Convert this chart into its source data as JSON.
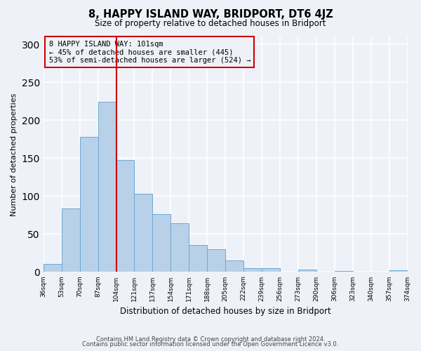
{
  "title": "8, HAPPY ISLAND WAY, BRIDPORT, DT6 4JZ",
  "subtitle": "Size of property relative to detached houses in Bridport",
  "xlabel": "Distribution of detached houses by size in Bridport",
  "ylabel": "Number of detached properties",
  "bin_labels": [
    "36sqm",
    "53sqm",
    "70sqm",
    "87sqm",
    "104sqm",
    "121sqm",
    "137sqm",
    "154sqm",
    "171sqm",
    "188sqm",
    "205sqm",
    "222sqm",
    "239sqm",
    "256sqm",
    "273sqm",
    "290sqm",
    "306sqm",
    "323sqm",
    "340sqm",
    "357sqm",
    "374sqm"
  ],
  "bar_heights": [
    11,
    84,
    178,
    224,
    148,
    103,
    76,
    64,
    36,
    30,
    15,
    5,
    5,
    0,
    3,
    0,
    1,
    0,
    0,
    2
  ],
  "bar_color": "#b8d0e8",
  "bar_edge_color": "#6aaad4",
  "vline_x": 4,
  "vline_color": "#cc0000",
  "annotation_title": "8 HAPPY ISLAND WAY: 101sqm",
  "annotation_line1": "← 45% of detached houses are smaller (445)",
  "annotation_line2": "53% of semi-detached houses are larger (524) →",
  "annotation_box_color": "#cc0000",
  "ylim": [
    0,
    310
  ],
  "yticks": [
    0,
    50,
    100,
    150,
    200,
    250,
    300
  ],
  "footer1": "Contains HM Land Registry data © Crown copyright and database right 2024.",
  "footer2": "Contains public sector information licensed under the Open Government Licence v3.0.",
  "background_color": "#eef2f8"
}
